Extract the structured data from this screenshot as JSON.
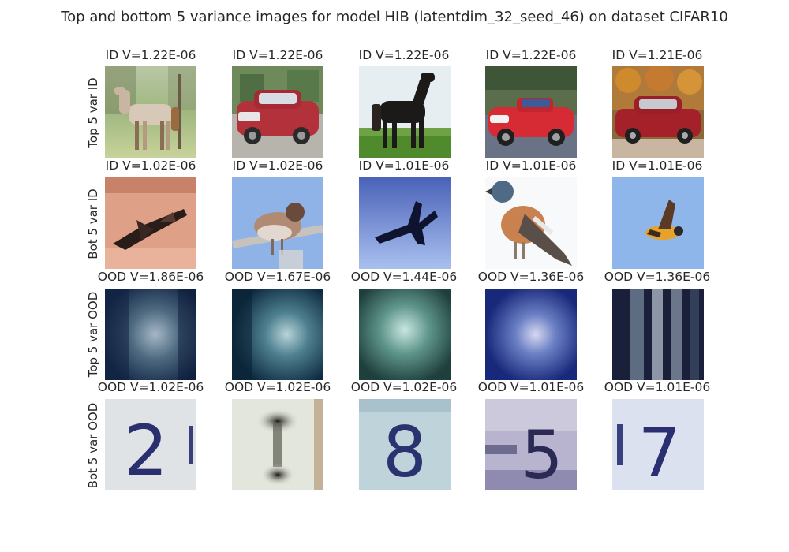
{
  "figure": {
    "title": "Top and bottom 5 variance images for model HIB (latentdim_32_seed_46) on dataset CIFAR10"
  },
  "rows": [
    {
      "label": "Top 5 var ID",
      "tiles": [
        {
          "caption": "ID V=1.22E-06",
          "depicts": "white and brown horse standing on grass"
        },
        {
          "caption": "ID V=1.22E-06",
          "depicts": "red hatchback car parked"
        },
        {
          "caption": "ID V=1.22E-06",
          "depicts": "dark horse standing on grass"
        },
        {
          "caption": "ID V=1.22E-06",
          "depicts": "red convertible car"
        },
        {
          "caption": "ID V=1.21E-06",
          "depicts": "red sedan car in front of trees"
        }
      ]
    },
    {
      "label": "Bot 5 var ID",
      "tiles": [
        {
          "caption": "ID V=1.02E-06",
          "depicts": "dark aircraft over sandy ground"
        },
        {
          "caption": "ID V=1.02E-06",
          "depicts": "sparrow on branch against blue sky"
        },
        {
          "caption": "ID V=1.01E-06",
          "depicts": "jet fighter silhouette in blue sky"
        },
        {
          "caption": "ID V=1.01E-06",
          "depicts": "finch bird on white background"
        },
        {
          "caption": "ID V=1.01E-06",
          "depicts": "small bird in flight against blue sky"
        }
      ]
    },
    {
      "label": "Top 5 var OOD",
      "tiles": [
        {
          "caption": "OOD V=1.86E-06",
          "depicts": "blurry dark blue digit image"
        },
        {
          "caption": "OOD V=1.67E-06",
          "depicts": "blurry dark teal digit image"
        },
        {
          "caption": "OOD V=1.44E-06",
          "depicts": "blurry green teal digit image"
        },
        {
          "caption": "OOD V=1.36E-06",
          "depicts": "blurry blue digit image"
        },
        {
          "caption": "OOD V=1.36E-06",
          "depicts": "blurry dark striped digit image"
        }
      ]
    },
    {
      "label": "Bot 5 var OOD",
      "tiles": [
        {
          "caption": "OOD V=1.02E-06",
          "depicts": "house number digit 2"
        },
        {
          "caption": "OOD V=1.02E-06",
          "depicts": "dark blob shaped like digit 1"
        },
        {
          "caption": "OOD V=1.02E-06",
          "depicts": "house number digit 8"
        },
        {
          "caption": "OOD V=1.01E-06",
          "depicts": "house number digit 5"
        },
        {
          "caption": "OOD V=1.01E-06",
          "depicts": "house number digit 7"
        }
      ]
    }
  ]
}
